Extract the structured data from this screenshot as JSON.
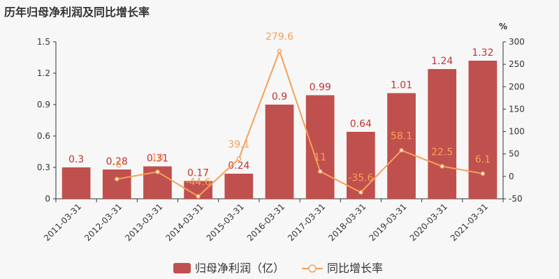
{
  "title": "历年归母净利润及同比增长率",
  "colors": {
    "bar": "#c0504d",
    "line": "#f5a05a",
    "background": "#f7f7f7"
  },
  "chart_data": {
    "type": "bar",
    "categories": [
      "2011-03-31",
      "2012-03-31",
      "2013-03-31",
      "2014-03-31",
      "2015-03-31",
      "2016-03-31",
      "2017-03-31",
      "2018-03-31",
      "2019-03-31",
      "2020-03-31",
      "2021-03-31"
    ],
    "series": [
      {
        "name": "归母净利润（亿）",
        "type": "bar",
        "axis": "left",
        "values": [
          0.3,
          0.28,
          0.31,
          0.17,
          0.24,
          0.9,
          0.99,
          0.64,
          1.01,
          1.24,
          1.32
        ],
        "labels": [
          "0.3",
          "0.28",
          "0.31",
          "0.17",
          "0.24",
          "0.9",
          "0.99",
          "0.64",
          "1.01",
          "1.24",
          "1.32"
        ]
      },
      {
        "name": "同比增长率",
        "type": "line",
        "axis": "right",
        "values": [
          null,
          -6,
          10,
          -44.6,
          39.1,
          279.6,
          11,
          -35.6,
          58.1,
          22.5,
          6.1
        ],
        "labels": [
          "",
          "-6",
          "10",
          "-44.6",
          "39.1",
          "279.6",
          "11",
          "-35.6",
          "58.1",
          "22.5",
          "6.1"
        ]
      }
    ],
    "y_left": {
      "ylim": [
        0,
        1.5
      ],
      "ticks": [
        "0",
        "0.3",
        "0.6",
        "0.9",
        "1.2",
        "1.5"
      ]
    },
    "y_right": {
      "ylim": [
        -50,
        300
      ],
      "ticks": [
        "-50",
        "0",
        "50",
        "100",
        "150",
        "200",
        "250",
        "300"
      ],
      "unit": "%"
    },
    "legend": "bottom"
  }
}
